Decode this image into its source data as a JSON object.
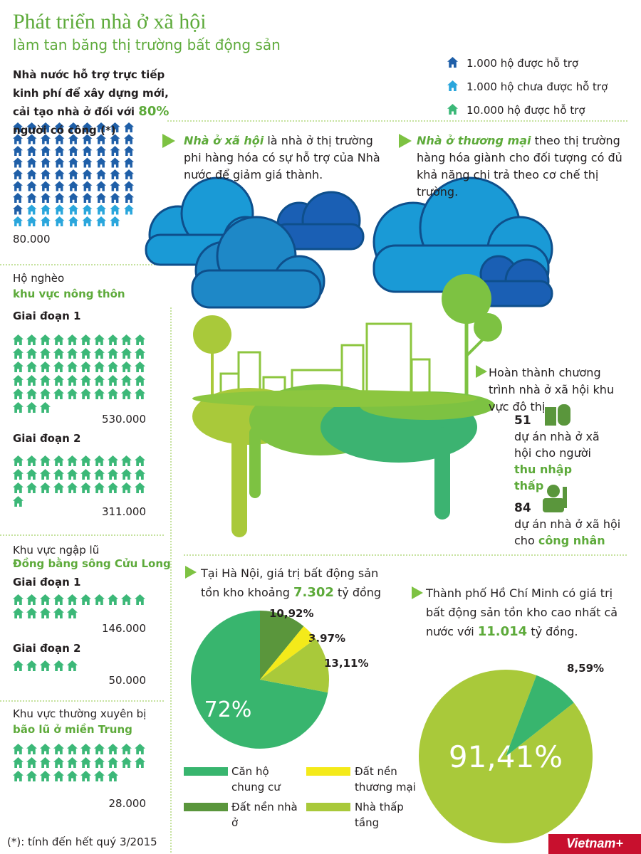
{
  "header": {
    "title": "Phát triển nhà ở xã hội",
    "subtitle": "làm tan băng thị trường bất động sản"
  },
  "legend": [
    {
      "label": "1.000 hộ được hỗ trợ",
      "color": "#1f5fa8"
    },
    {
      "label": "1.000 hộ chưa được hỗ trợ",
      "color": "#2aa6dc"
    },
    {
      "label": "10.000 hộ được hỗ trợ",
      "color": "#3cb878"
    }
  ],
  "meritorious": {
    "text": "Nhà nước hỗ trợ trực tiếp kinh phí để xây dựng mới, cải tạo nhà ở đối với",
    "highlight": "80%",
    "text_end": "người có công (*)",
    "icons": [
      {
        "count": 64,
        "color": "#1f5fa8"
      },
      {
        "count": 16,
        "color": "#2aa6dc"
      }
    ],
    "total": "80.000"
  },
  "groups": [
    {
      "title": "Hộ nghèo",
      "subtitle": "khu vực nông thôn",
      "phases": [
        {
          "name": "Giai đoạn 1",
          "icons": 53,
          "total": "530.000"
        },
        {
          "name": "Giai đoạn 2",
          "icons": 31,
          "total": "311.000"
        }
      ]
    },
    {
      "title": "Khu vực ngập lũ",
      "subtitle": "Đồng bằng sông Cửu Long",
      "phases": [
        {
          "name": "Giai đoạn 1",
          "icons": 15,
          "total": "146.000"
        },
        {
          "name": "Giai đoạn 2",
          "icons": 5,
          "total": "50.000"
        }
      ]
    },
    {
      "title": "Khu vực thường xuyên bị",
      "subtitle": "bão lũ ở miền Trung",
      "phases": [
        {
          "icons": 28,
          "total": "28.000"
        }
      ]
    }
  ],
  "notes": [
    {
      "term": "Nhà ở xã hội",
      "text": "là nhà ở thị trường phi hàng hóa có sự hỗ trợ của Nhà nước để giảm giá thành."
    },
    {
      "term": "Nhà ở thương mại",
      "text": "theo thị trường hàng hóa giành cho đối tượng có đủ khả năng chi trả theo cơ chế thị trường."
    }
  ],
  "urban": {
    "title": "Hoàn thành chương trình nhà ở xã hội khu vực đô thị",
    "stats": [
      {
        "number": "51",
        "text": "dự án nhà ở xã hội cho người",
        "highlight": "thu nhập thấp"
      },
      {
        "number": "84",
        "text": "dự án nhà ở xã hội cho",
        "highlight": "công nhân"
      }
    ]
  },
  "hanoi": {
    "note": "Tại Hà Nội, giá trị bất động sản tồn kho khoảng",
    "amount": "7.302",
    "note_end": "tỷ đồng",
    "type": "pie",
    "categories": [
      "Căn hộ chung cư",
      "Đất nền nhà ở",
      "Đất nền thương mại",
      "Nhà thấp tầng"
    ],
    "values": [
      72,
      10.92,
      3.97,
      13.11
    ],
    "value_labels": [
      "72%",
      "10,92%",
      "3,97%",
      "13,11%"
    ],
    "colors": [
      "#38b56e",
      "#5a963c",
      "#f4ea1a",
      "#a9c93a"
    ]
  },
  "hcm": {
    "note": "Thành phố Hồ Chí Minh có giá trị bất động sản tồn kho cao nhất cả nước với",
    "amount": "11.014",
    "note_end": "tỷ đồng.",
    "type": "pie",
    "values": [
      91.41,
      8.59
    ],
    "value_labels": [
      "91,41%",
      "8,59%"
    ],
    "colors": [
      "#a9c93a",
      "#38b56e"
    ]
  },
  "footnote": "(*): tính đến hết quý 3/2015",
  "logo": "Vietnam+"
}
